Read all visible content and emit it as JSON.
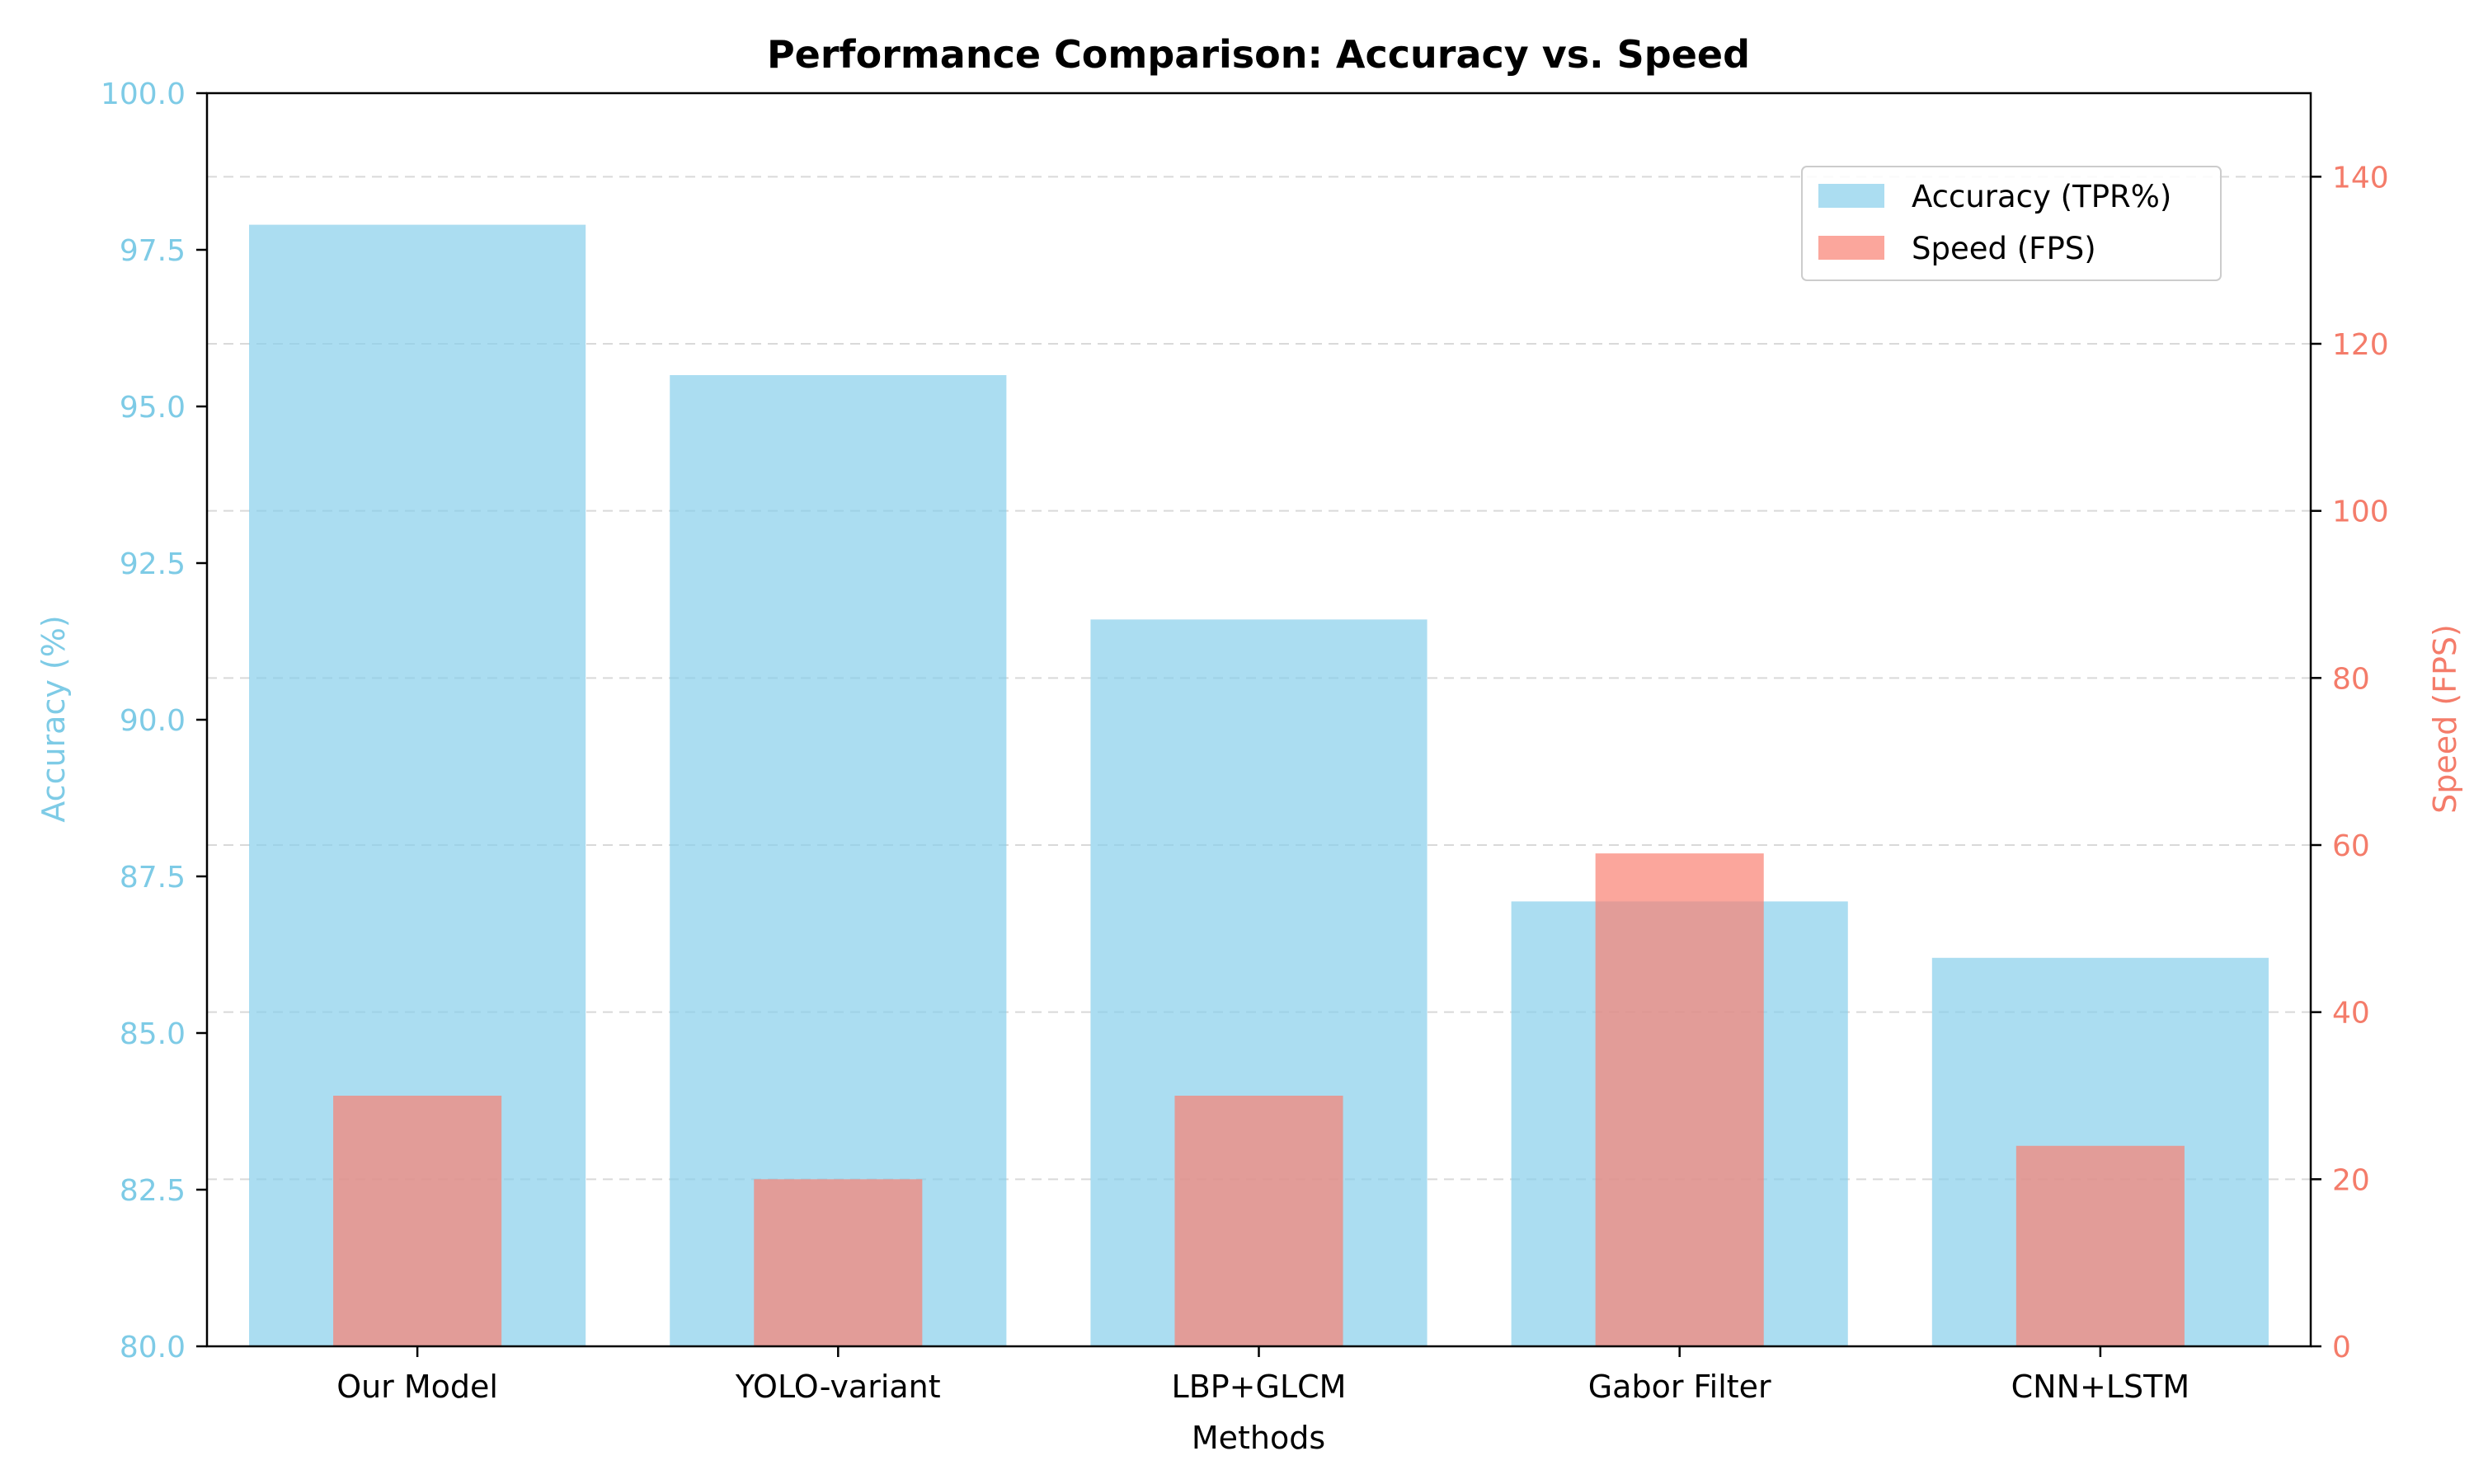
{
  "chart_data": {
    "type": "bar",
    "title": "Performance Comparison: Accuracy vs. Speed",
    "xlabel": "Methods",
    "categories": [
      "Our Model",
      "YOLO-variant",
      "LBP+GLCM",
      "Gabor Filter",
      "CNN+LSTM"
    ],
    "y_left": {
      "label": "Accuracy (%)",
      "lim": [
        80,
        100
      ],
      "ticks": [
        "80.0",
        "82.5",
        "85.0",
        "87.5",
        "90.0",
        "92.5",
        "95.0",
        "97.5",
        "100.0"
      ],
      "color": "#7ecbe6"
    },
    "y_right": {
      "label": "Speed (FPS)",
      "lim": [
        0,
        150
      ],
      "ticks": [
        "0",
        "20",
        "40",
        "60",
        "80",
        "100",
        "120",
        "140"
      ],
      "color": "#f47c6a"
    },
    "series": [
      {
        "name": "Accuracy (TPR%)",
        "axis": "left",
        "values": [
          97.9,
          95.5,
          91.6,
          87.1,
          86.2
        ],
        "color": "#87ceeb"
      },
      {
        "name": "Speed (FPS)",
        "axis": "right",
        "values": [
          30,
          20,
          30,
          59,
          24
        ],
        "color": "#fa8072"
      }
    ],
    "legend": "top-right",
    "grid": "horizontal dashed"
  }
}
